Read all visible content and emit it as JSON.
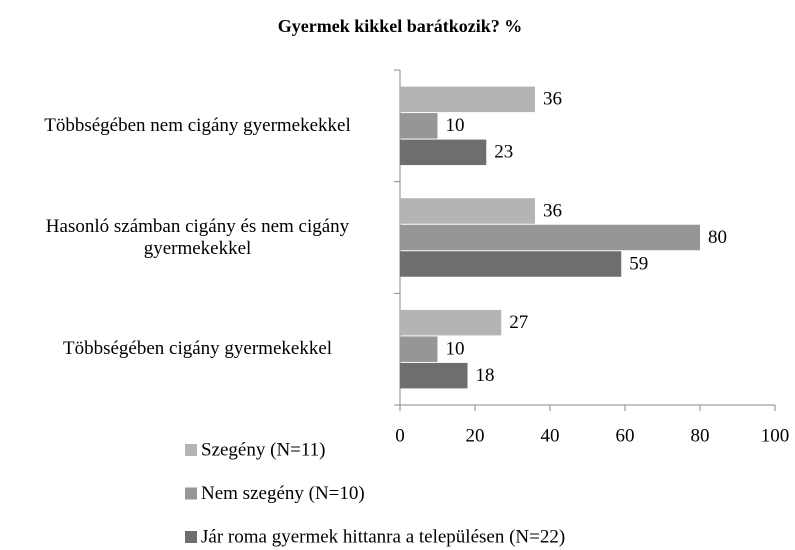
{
  "chart_data": {
    "type": "hbar",
    "title": "Gyermek kikkel barátkozik? %",
    "categories": [
      "Többségében nem cigány gyermekekkel",
      "Hasonló számban cigány és nem cigány gyermekekkel",
      "Többségében cigány gyermekekkel"
    ],
    "series": [
      {
        "name": "Szegény (N=11)",
        "color": "#b4b4b4",
        "values": [
          36,
          36,
          27
        ]
      },
      {
        "name": "Nem szegény (N=10)",
        "color": "#969696",
        "values": [
          10,
          80,
          10
        ]
      },
      {
        "name": "Jár roma gyermek hittanra a településen (N=22)",
        "color": "#6e6e6e",
        "values": [
          23,
          59,
          18
        ]
      }
    ],
    "xlim": [
      0,
      100
    ],
    "xticks": [
      0,
      20,
      40,
      60,
      80,
      100
    ],
    "legend": "bottom-left"
  }
}
